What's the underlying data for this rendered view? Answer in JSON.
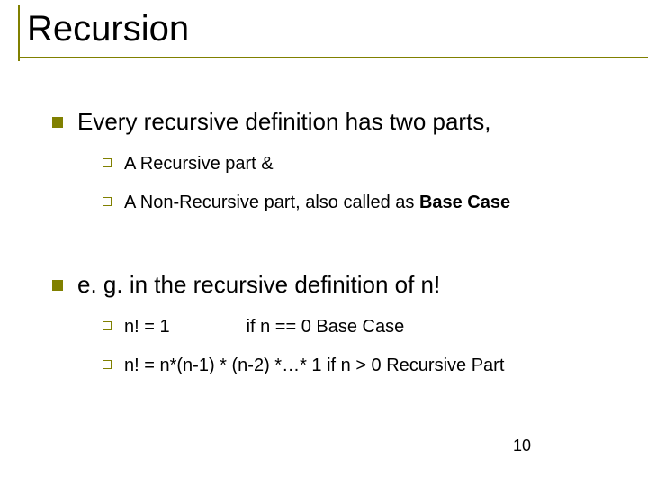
{
  "colors": {
    "accent": "#808000",
    "text": "#000000",
    "background": "#ffffff"
  },
  "title": "Recursion",
  "page_number": "10",
  "typography": {
    "font_family": "Arial",
    "title_fontsize_pt": 40,
    "level1_fontsize_pt": 26,
    "level2_fontsize_pt": 20
  },
  "bullets": {
    "level1": [
      {
        "text": "Every recursive definition has two parts,",
        "children": [
          {
            "text": "A Recursive part &"
          },
          {
            "text_prefix": "A Non-Recursive part, also called as ",
            "text_bold": "Base Case"
          }
        ]
      },
      {
        "text": "e. g. in the  recursive definition of n!",
        "children": [
          {
            "left": "n! = 1",
            "right": "if n == 0  Base Case"
          },
          {
            "full": "n! = n*(n-1) * (n-2) *…* 1  if n > 0  Recursive Part"
          }
        ]
      }
    ]
  }
}
